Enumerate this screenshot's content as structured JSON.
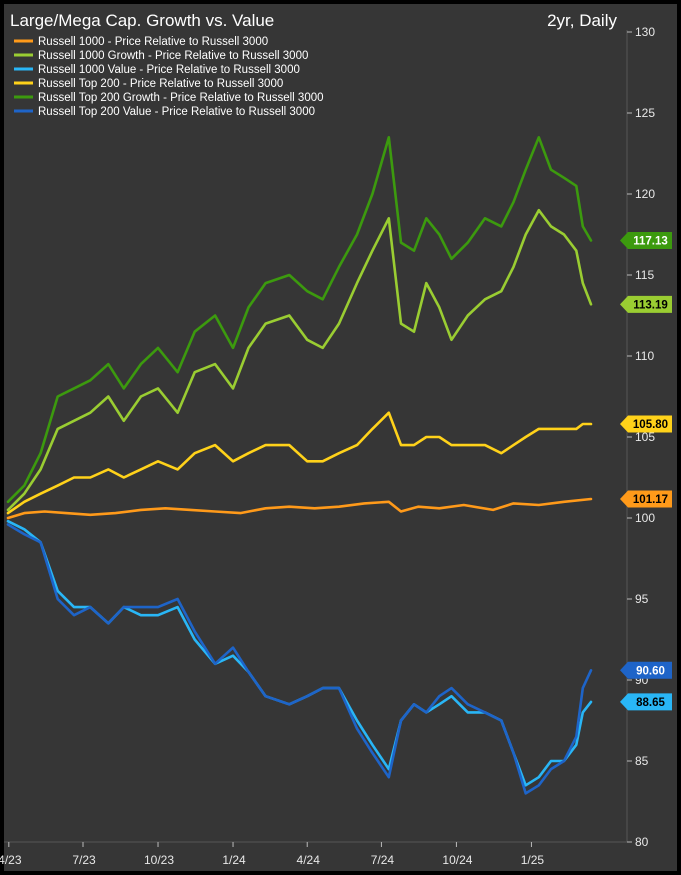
{
  "chart_data": {
    "type": "line",
    "title": "Large/Mega Cap. Growth vs. Value",
    "subtitle": "2yr, Daily",
    "ylim": [
      80,
      130
    ],
    "yticks": [
      80,
      85,
      90,
      95,
      100,
      105,
      110,
      115,
      120,
      125,
      130
    ],
    "xlim": [
      "2023-03-31",
      "2025-03-31"
    ],
    "xticks": [
      {
        "label": "4/23",
        "date": "2023-04-01"
      },
      {
        "label": "7/23",
        "date": "2023-07-01"
      },
      {
        "label": "10/23",
        "date": "2023-10-01"
      },
      {
        "label": "1/24",
        "date": "2024-01-01"
      },
      {
        "label": "4/24",
        "date": "2024-04-01"
      },
      {
        "label": "7/24",
        "date": "2024-07-01"
      },
      {
        "label": "10/24",
        "date": "2024-10-01"
      },
      {
        "label": "1/25",
        "date": "2025-01-01"
      }
    ],
    "legend_position": "top-left",
    "grid": false,
    "series": [
      {
        "name": "Russell 1000 - Price Relative to Russell 3000",
        "color": "#ff9a1a",
        "last_label": "101.17",
        "points": [
          [
            "2023-03-31",
            100.0
          ],
          [
            "2023-04-20",
            100.3
          ],
          [
            "2023-05-15",
            100.4
          ],
          [
            "2023-06-10",
            100.3
          ],
          [
            "2023-07-10",
            100.2
          ],
          [
            "2023-08-10",
            100.3
          ],
          [
            "2023-09-10",
            100.5
          ],
          [
            "2023-10-10",
            100.6
          ],
          [
            "2023-11-10",
            100.5
          ],
          [
            "2023-12-10",
            100.4
          ],
          [
            "2024-01-10",
            100.3
          ],
          [
            "2024-02-10",
            100.6
          ],
          [
            "2024-03-10",
            100.7
          ],
          [
            "2024-04-10",
            100.6
          ],
          [
            "2024-05-10",
            100.7
          ],
          [
            "2024-06-10",
            100.9
          ],
          [
            "2024-07-10",
            101.0
          ],
          [
            "2024-07-25",
            100.4
          ],
          [
            "2024-08-15",
            100.7
          ],
          [
            "2024-09-10",
            100.6
          ],
          [
            "2024-10-10",
            100.8
          ],
          [
            "2024-11-15",
            100.5
          ],
          [
            "2024-12-10",
            100.9
          ],
          [
            "2025-01-10",
            100.8
          ],
          [
            "2025-02-10",
            101.0
          ],
          [
            "2025-03-15",
            101.17
          ]
        ]
      },
      {
        "name": "Russell 1000 Growth - Price Relative to Russell 3000",
        "color": "#9acd32",
        "last_label": "113.19",
        "points": [
          [
            "2023-03-31",
            100.5
          ],
          [
            "2023-04-20",
            101.5
          ],
          [
            "2023-05-10",
            103.0
          ],
          [
            "2023-05-31",
            105.5
          ],
          [
            "2023-06-20",
            106.0
          ],
          [
            "2023-07-10",
            106.5
          ],
          [
            "2023-08-01",
            107.5
          ],
          [
            "2023-08-20",
            106.0
          ],
          [
            "2023-09-10",
            107.5
          ],
          [
            "2023-10-01",
            108.0
          ],
          [
            "2023-10-25",
            106.5
          ],
          [
            "2023-11-15",
            109.0
          ],
          [
            "2023-12-10",
            109.5
          ],
          [
            "2024-01-01",
            108.0
          ],
          [
            "2024-01-20",
            110.5
          ],
          [
            "2024-02-10",
            112.0
          ],
          [
            "2024-03-10",
            112.5
          ],
          [
            "2024-04-01",
            111.0
          ],
          [
            "2024-04-20",
            110.5
          ],
          [
            "2024-05-10",
            112.0
          ],
          [
            "2024-06-01",
            114.5
          ],
          [
            "2024-06-20",
            116.5
          ],
          [
            "2024-07-10",
            118.5
          ],
          [
            "2024-07-25",
            112.0
          ],
          [
            "2024-08-10",
            111.5
          ],
          [
            "2024-08-25",
            114.5
          ],
          [
            "2024-09-10",
            113.0
          ],
          [
            "2024-09-25",
            111.0
          ],
          [
            "2024-10-15",
            112.5
          ],
          [
            "2024-11-05",
            113.5
          ],
          [
            "2024-11-25",
            114.0
          ],
          [
            "2024-12-10",
            115.5
          ],
          [
            "2024-12-25",
            117.5
          ],
          [
            "2025-01-10",
            119.0
          ],
          [
            "2025-01-25",
            118.0
          ],
          [
            "2025-02-10",
            117.5
          ],
          [
            "2025-02-25",
            116.5
          ],
          [
            "2025-03-05",
            114.5
          ],
          [
            "2025-03-15",
            113.19
          ]
        ]
      },
      {
        "name": "Russell 1000 Value - Price Relative to Russell 3000",
        "color": "#29b6f6",
        "last_label": "88.65",
        "points": [
          [
            "2023-03-31",
            99.8
          ],
          [
            "2023-04-20",
            99.3
          ],
          [
            "2023-05-10",
            98.5
          ],
          [
            "2023-05-31",
            95.5
          ],
          [
            "2023-06-20",
            94.5
          ],
          [
            "2023-07-10",
            94.5
          ],
          [
            "2023-08-01",
            93.5
          ],
          [
            "2023-08-20",
            94.5
          ],
          [
            "2023-09-10",
            94.0
          ],
          [
            "2023-10-01",
            94.0
          ],
          [
            "2023-10-25",
            94.5
          ],
          [
            "2023-11-15",
            92.5
          ],
          [
            "2023-12-10",
            91.0
          ],
          [
            "2024-01-01",
            91.5
          ],
          [
            "2024-01-20",
            90.5
          ],
          [
            "2024-02-10",
            89.0
          ],
          [
            "2024-03-10",
            88.5
          ],
          [
            "2024-04-01",
            89.0
          ],
          [
            "2024-04-20",
            89.5
          ],
          [
            "2024-05-10",
            89.5
          ],
          [
            "2024-06-01",
            87.5
          ],
          [
            "2024-06-20",
            86.0
          ],
          [
            "2024-07-10",
            84.5
          ],
          [
            "2024-07-25",
            87.5
          ],
          [
            "2024-08-10",
            88.5
          ],
          [
            "2024-08-25",
            88.0
          ],
          [
            "2024-09-10",
            88.5
          ],
          [
            "2024-09-25",
            89.0
          ],
          [
            "2024-10-15",
            88.0
          ],
          [
            "2024-11-05",
            88.0
          ],
          [
            "2024-11-25",
            87.5
          ],
          [
            "2024-12-10",
            85.5
          ],
          [
            "2024-12-25",
            83.5
          ],
          [
            "2025-01-10",
            84.0
          ],
          [
            "2025-01-25",
            85.0
          ],
          [
            "2025-02-10",
            85.0
          ],
          [
            "2025-02-25",
            86.0
          ],
          [
            "2025-03-05",
            88.0
          ],
          [
            "2025-03-15",
            88.65
          ]
        ]
      },
      {
        "name": "Russell Top 200 - Price Relative to Russell 3000",
        "color": "#ffd21a",
        "last_label": "105.80",
        "points": [
          [
            "2023-03-31",
            100.3
          ],
          [
            "2023-04-20",
            101.0
          ],
          [
            "2023-05-10",
            101.5
          ],
          [
            "2023-05-31",
            102.0
          ],
          [
            "2023-06-20",
            102.5
          ],
          [
            "2023-07-10",
            102.5
          ],
          [
            "2023-08-01",
            103.0
          ],
          [
            "2023-08-20",
            102.5
          ],
          [
            "2023-09-10",
            103.0
          ],
          [
            "2023-10-01",
            103.5
          ],
          [
            "2023-10-25",
            103.0
          ],
          [
            "2023-11-15",
            104.0
          ],
          [
            "2023-12-10",
            104.5
          ],
          [
            "2024-01-01",
            103.5
          ],
          [
            "2024-01-20",
            104.0
          ],
          [
            "2024-02-10",
            104.5
          ],
          [
            "2024-03-10",
            104.5
          ],
          [
            "2024-04-01",
            103.5
          ],
          [
            "2024-04-20",
            103.5
          ],
          [
            "2024-05-10",
            104.0
          ],
          [
            "2024-06-01",
            104.5
          ],
          [
            "2024-06-20",
            105.5
          ],
          [
            "2024-07-10",
            106.5
          ],
          [
            "2024-07-25",
            104.5
          ],
          [
            "2024-08-10",
            104.5
          ],
          [
            "2024-08-25",
            105.0
          ],
          [
            "2024-09-10",
            105.0
          ],
          [
            "2024-09-25",
            104.5
          ],
          [
            "2024-10-15",
            104.5
          ],
          [
            "2024-11-05",
            104.5
          ],
          [
            "2024-11-25",
            104.0
          ],
          [
            "2024-12-10",
            104.5
          ],
          [
            "2024-12-25",
            105.0
          ],
          [
            "2025-01-10",
            105.5
          ],
          [
            "2025-01-25",
            105.5
          ],
          [
            "2025-02-10",
            105.5
          ],
          [
            "2025-02-25",
            105.5
          ],
          [
            "2025-03-05",
            105.8
          ],
          [
            "2025-03-15",
            105.8
          ]
        ]
      },
      {
        "name": "Russell Top 200 Growth - Price Relative to Russell 3000",
        "color": "#3c9a0e",
        "last_label": "117.13",
        "points": [
          [
            "2023-03-31",
            101.0
          ],
          [
            "2023-04-20",
            102.0
          ],
          [
            "2023-05-10",
            104.0
          ],
          [
            "2023-05-31",
            107.5
          ],
          [
            "2023-06-20",
            108.0
          ],
          [
            "2023-07-10",
            108.5
          ],
          [
            "2023-08-01",
            109.5
          ],
          [
            "2023-08-20",
            108.0
          ],
          [
            "2023-09-10",
            109.5
          ],
          [
            "2023-10-01",
            110.5
          ],
          [
            "2023-10-25",
            109.0
          ],
          [
            "2023-11-15",
            111.5
          ],
          [
            "2023-12-10",
            112.5
          ],
          [
            "2024-01-01",
            110.5
          ],
          [
            "2024-01-20",
            113.0
          ],
          [
            "2024-02-10",
            114.5
          ],
          [
            "2024-03-10",
            115.0
          ],
          [
            "2024-04-01",
            114.0
          ],
          [
            "2024-04-20",
            113.5
          ],
          [
            "2024-05-10",
            115.5
          ],
          [
            "2024-06-01",
            117.5
          ],
          [
            "2024-06-20",
            120.0
          ],
          [
            "2024-07-10",
            123.5
          ],
          [
            "2024-07-25",
            117.0
          ],
          [
            "2024-08-10",
            116.5
          ],
          [
            "2024-08-25",
            118.5
          ],
          [
            "2024-09-10",
            117.5
          ],
          [
            "2024-09-25",
            116.0
          ],
          [
            "2024-10-15",
            117.0
          ],
          [
            "2024-11-05",
            118.5
          ],
          [
            "2024-11-25",
            118.0
          ],
          [
            "2024-12-10",
            119.5
          ],
          [
            "2024-12-25",
            121.5
          ],
          [
            "2025-01-10",
            123.5
          ],
          [
            "2025-01-25",
            121.5
          ],
          [
            "2025-02-10",
            121.0
          ],
          [
            "2025-02-25",
            120.5
          ],
          [
            "2025-03-05",
            118.0
          ],
          [
            "2025-03-15",
            117.13
          ]
        ]
      },
      {
        "name": "Russell Top 200 Value - Price Relative to Russell 3000",
        "color": "#1e64c8",
        "last_label": "90.60",
        "points": [
          [
            "2023-03-31",
            99.6
          ],
          [
            "2023-04-20",
            99.0
          ],
          [
            "2023-05-10",
            98.5
          ],
          [
            "2023-05-31",
            95.0
          ],
          [
            "2023-06-20",
            94.0
          ],
          [
            "2023-07-10",
            94.5
          ],
          [
            "2023-08-01",
            93.5
          ],
          [
            "2023-08-20",
            94.5
          ],
          [
            "2023-09-10",
            94.5
          ],
          [
            "2023-10-01",
            94.5
          ],
          [
            "2023-10-25",
            95.0
          ],
          [
            "2023-11-15",
            93.0
          ],
          [
            "2023-12-10",
            91.0
          ],
          [
            "2024-01-01",
            92.0
          ],
          [
            "2024-01-20",
            90.5
          ],
          [
            "2024-02-10",
            89.0
          ],
          [
            "2024-03-10",
            88.5
          ],
          [
            "2024-04-01",
            89.0
          ],
          [
            "2024-04-20",
            89.5
          ],
          [
            "2024-05-10",
            89.5
          ],
          [
            "2024-06-01",
            87.0
          ],
          [
            "2024-06-20",
            85.5
          ],
          [
            "2024-07-10",
            84.0
          ],
          [
            "2024-07-25",
            87.5
          ],
          [
            "2024-08-10",
            88.5
          ],
          [
            "2024-08-25",
            88.0
          ],
          [
            "2024-09-10",
            89.0
          ],
          [
            "2024-09-25",
            89.5
          ],
          [
            "2024-10-15",
            88.5
          ],
          [
            "2024-11-05",
            88.0
          ],
          [
            "2024-11-25",
            87.5
          ],
          [
            "2024-12-10",
            85.5
          ],
          [
            "2024-12-25",
            83.0
          ],
          [
            "2025-01-10",
            83.5
          ],
          [
            "2025-01-25",
            84.5
          ],
          [
            "2025-02-10",
            85.0
          ],
          [
            "2025-02-25",
            86.5
          ],
          [
            "2025-03-05",
            89.5
          ],
          [
            "2025-03-15",
            90.6
          ]
        ]
      }
    ]
  }
}
